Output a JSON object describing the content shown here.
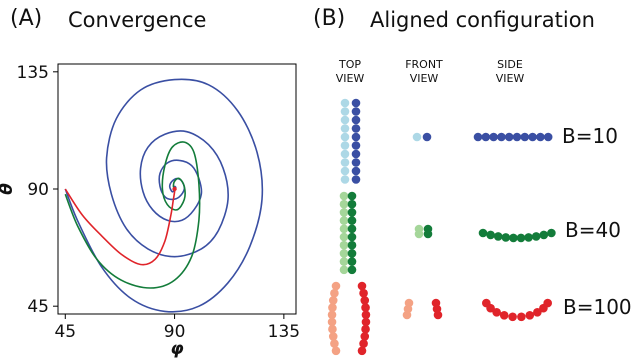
{
  "panel_a": {
    "letter": "(A)",
    "title": "Convergence",
    "target": {
      "x": 90,
      "y": 90
    }
  },
  "panel_b": {
    "letter": "(B)",
    "title": "Aligned configuration",
    "columns": [
      {
        "line1": "TOP",
        "line2": "VIEW"
      },
      {
        "line1": "FRONT",
        "line2": "VIEW"
      },
      {
        "line1": "SIDE",
        "line2": "VIEW"
      }
    ],
    "rows": [
      {
        "label": "B=10",
        "light": "#add8e6",
        "dark": "#3a4fa3"
      },
      {
        "label": "B=40",
        "light": "#a5d69a",
        "dark": "#137c3a"
      },
      {
        "label": "B=100",
        "light": "#f4a284",
        "dark": "#e0242a"
      }
    ]
  },
  "chart_data": {
    "type": "line",
    "title": "",
    "xlabel": "φ",
    "ylabel": "θ",
    "xlim": [
      42,
      140
    ],
    "ylim": [
      42,
      138
    ],
    "xticks": [
      45,
      90,
      135
    ],
    "yticks": [
      45,
      90,
      135
    ],
    "grid": false,
    "series": [
      {
        "color": "#3a4fa3",
        "points": [
          [
            45,
            90
          ],
          [
            50,
            78
          ],
          [
            60,
            60
          ],
          [
            72,
            48
          ],
          [
            86,
            43
          ],
          [
            100,
            45
          ],
          [
            112,
            54
          ],
          [
            121,
            68
          ],
          [
            126,
            86
          ],
          [
            124,
            104
          ],
          [
            116,
            120
          ],
          [
            104,
            130
          ],
          [
            90,
            132
          ],
          [
            76,
            128
          ],
          [
            66,
            117
          ],
          [
            62,
            102
          ],
          [
            64,
            88
          ],
          [
            70,
            75
          ],
          [
            79,
            67
          ],
          [
            90,
            64
          ],
          [
            101,
            67
          ],
          [
            108,
            74
          ],
          [
            112,
            86
          ],
          [
            110,
            98
          ],
          [
            104,
            107
          ],
          [
            95,
            112
          ],
          [
            86,
            111
          ],
          [
            79,
            106
          ],
          [
            76,
            98
          ],
          [
            77,
            89
          ],
          [
            81,
            82
          ],
          [
            87,
            78
          ],
          [
            93,
            78
          ],
          [
            98,
            82
          ],
          [
            101,
            88
          ],
          [
            100,
            94
          ],
          [
            97,
            99
          ],
          [
            92,
            101
          ],
          [
            87,
            100
          ],
          [
            84,
            96
          ],
          [
            84,
            91
          ],
          [
            86,
            87
          ],
          [
            89,
            86
          ],
          [
            92,
            87
          ],
          [
            94,
            90
          ],
          [
            93,
            93
          ],
          [
            91,
            94
          ],
          [
            89,
            93
          ],
          [
            88,
            91
          ],
          [
            89,
            89
          ],
          [
            90,
            89.5
          ],
          [
            90.5,
            90.5
          ],
          [
            90,
            91
          ],
          [
            89.8,
            90.2
          ],
          [
            90,
            90
          ]
        ]
      },
      {
        "color": "#137c3a",
        "points": [
          [
            45,
            88
          ],
          [
            50,
            76
          ],
          [
            58,
            63
          ],
          [
            68,
            55
          ],
          [
            80,
            52
          ],
          [
            90,
            55
          ],
          [
            97,
            64
          ],
          [
            100,
            78
          ],
          [
            100,
            92
          ],
          [
            98,
            104
          ],
          [
            94,
            108
          ],
          [
            89,
            106
          ],
          [
            86,
            99
          ],
          [
            85,
            90
          ],
          [
            87,
            84
          ],
          [
            91,
            82
          ],
          [
            94,
            86
          ],
          [
            94,
            91
          ],
          [
            92,
            94
          ],
          [
            90,
            93
          ],
          [
            89.5,
            91
          ],
          [
            90,
            90
          ]
        ]
      },
      {
        "color": "#e0242a",
        "points": [
          [
            45,
            90
          ],
          [
            52,
            80
          ],
          [
            60,
            72
          ],
          [
            68,
            65
          ],
          [
            76,
            61
          ],
          [
            82,
            63
          ],
          [
            86,
            70
          ],
          [
            88.5,
            80
          ],
          [
            89.5,
            86
          ],
          [
            90,
            89
          ],
          [
            90,
            90
          ]
        ]
      }
    ]
  }
}
